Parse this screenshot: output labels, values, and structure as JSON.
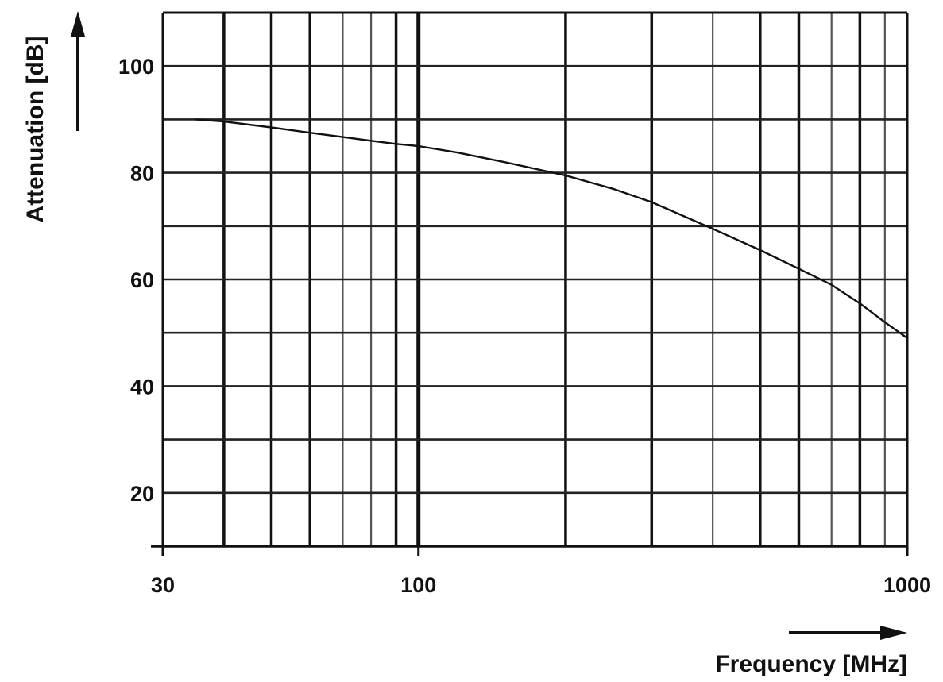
{
  "chart_data": {
    "type": "line",
    "title": "",
    "xlabel": "Frequency [MHz]",
    "ylabel": "Attenuation [dB]",
    "x_scale": "log",
    "xlim": [
      30,
      1000
    ],
    "ylim": [
      10,
      110
    ],
    "grid": true,
    "x_tick_labels": [
      "30",
      "100",
      "1000"
    ],
    "y_tick_labels": [
      "20",
      "40",
      "60",
      "80",
      "100"
    ],
    "series": [
      {
        "x": [
          35,
          40,
          50,
          60,
          70,
          80,
          90,
          100,
          120,
          150,
          200,
          250,
          300,
          400,
          500,
          600,
          700,
          800,
          900,
          1000
        ],
        "y": [
          90,
          89.6,
          88.5,
          87.5,
          86.7,
          86,
          85.4,
          85,
          83.8,
          82,
          79.5,
          77,
          74.5,
          69.5,
          65.5,
          62,
          59,
          55.5,
          52,
          49
        ]
      }
    ]
  }
}
